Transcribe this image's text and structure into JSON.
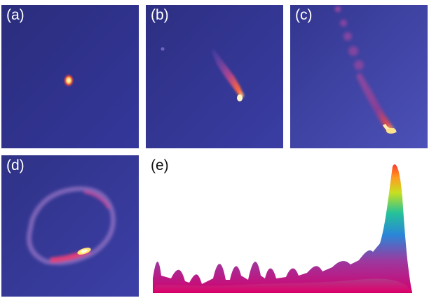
{
  "panels": [
    {
      "id": "a",
      "label": "(a)"
    },
    {
      "id": "b",
      "label": "(b)"
    },
    {
      "id": "c",
      "label": "(c)"
    },
    {
      "id": "d",
      "label": "(d)"
    },
    {
      "id": "e",
      "label": "(e)"
    }
  ],
  "colors": {
    "background_dark": "#2a2b7a",
    "background_light": "#4a4fb0",
    "hot_core": "#fff7c8",
    "warm": "#ff8a2a",
    "magenta": "#d0287a",
    "violet": "#7a3aa0"
  }
}
